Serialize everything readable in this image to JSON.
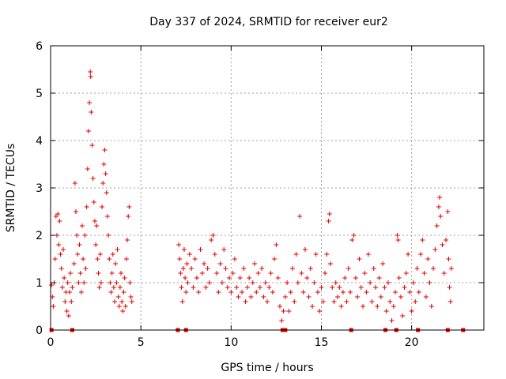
{
  "chart_data": {
    "type": "scatter",
    "title": "Day 337 of 2024, SRMTID for receiver eur2",
    "xlabel": "GPS time / hours",
    "ylabel": "SRMTID / TECUs",
    "xlim": [
      0,
      24
    ],
    "ylim": [
      0,
      6
    ],
    "xticks": [
      0,
      5,
      10,
      15,
      20
    ],
    "xtick_labels": [
      "0",
      "5",
      "10",
      "15",
      "20"
    ],
    "yticks": [
      0,
      1,
      2,
      3,
      4,
      5,
      6
    ],
    "ytick_labels": [
      "0",
      "1",
      "2",
      "3",
      "4",
      "5",
      "6"
    ],
    "grid": true,
    "marker": "+",
    "color": "#e00000",
    "series": [
      {
        "name": "SRMTID",
        "points": [
          [
            0.05,
            0.95
          ],
          [
            0.1,
            0.7
          ],
          [
            0.15,
            0.5
          ],
          [
            0.2,
            1.0
          ],
          [
            0.25,
            1.5
          ],
          [
            0.3,
            2.4
          ],
          [
            0.35,
            2.0
          ],
          [
            0.4,
            2.45
          ],
          [
            0.45,
            1.8
          ],
          [
            0.5,
            2.3
          ],
          [
            0.55,
            1.6
          ],
          [
            0.6,
            1.3
          ],
          [
            0.65,
            0.9
          ],
          [
            0.7,
            1.7
          ],
          [
            0.75,
            1.1
          ],
          [
            0.8,
            0.6
          ],
          [
            0.85,
            0.8
          ],
          [
            0.9,
            0.4
          ],
          [
            0.95,
            1.0
          ],
          [
            1.0,
            0.3
          ],
          [
            1.05,
            0.8
          ],
          [
            1.1,
            1.2
          ],
          [
            1.15,
            0.6
          ],
          [
            1.2,
            0.9
          ],
          [
            1.3,
            1.4
          ],
          [
            1.35,
            3.1
          ],
          [
            1.4,
            2.5
          ],
          [
            1.45,
            2.0
          ],
          [
            1.5,
            1.6
          ],
          [
            1.55,
            1.0
          ],
          [
            1.6,
            1.8
          ],
          [
            1.65,
            1.2
          ],
          [
            1.7,
            0.8
          ],
          [
            1.75,
            2.2
          ],
          [
            1.8,
            1.5
          ],
          [
            1.85,
            1.0
          ],
          [
            1.9,
            2.0
          ],
          [
            1.95,
            1.3
          ],
          [
            2.0,
            2.6
          ],
          [
            2.05,
            3.4
          ],
          [
            2.1,
            4.2
          ],
          [
            2.15,
            4.8
          ],
          [
            2.2,
            5.45
          ],
          [
            2.22,
            5.35
          ],
          [
            2.25,
            4.6
          ],
          [
            2.3,
            3.9
          ],
          [
            2.35,
            3.2
          ],
          [
            2.4,
            2.7
          ],
          [
            2.45,
            2.3
          ],
          [
            2.5,
            1.8
          ],
          [
            2.55,
            2.2
          ],
          [
            2.6,
            1.5
          ],
          [
            2.65,
            1.2
          ],
          [
            2.7,
            0.9
          ],
          [
            2.75,
            1.6
          ],
          [
            2.8,
            1.0
          ],
          [
            2.85,
            2.6
          ],
          [
            2.9,
            3.1
          ],
          [
            2.95,
            3.5
          ],
          [
            3.0,
            3.8
          ],
          [
            3.05,
            3.3
          ],
          [
            3.1,
            2.9
          ],
          [
            3.15,
            2.4
          ],
          [
            3.2,
            2.0
          ],
          [
            3.25,
            1.5
          ],
          [
            3.3,
            1.0
          ],
          [
            3.35,
            0.8
          ],
          [
            3.4,
            1.2
          ],
          [
            3.45,
            1.6
          ],
          [
            3.5,
            0.9
          ],
          [
            3.55,
            0.6
          ],
          [
            3.6,
            1.4
          ],
          [
            3.65,
            1.0
          ],
          [
            3.7,
            1.7
          ],
          [
            3.75,
            0.7
          ],
          [
            3.8,
            0.5
          ],
          [
            3.85,
            0.9
          ],
          [
            3.9,
            1.2
          ],
          [
            3.95,
            0.6
          ],
          [
            4.0,
            0.4
          ],
          [
            4.05,
            0.8
          ],
          [
            4.1,
            1.1
          ],
          [
            4.15,
            0.5
          ],
          [
            4.2,
            1.5
          ],
          [
            4.25,
            1.9
          ],
          [
            4.3,
            2.4
          ],
          [
            4.35,
            2.6
          ],
          [
            4.4,
            1.0
          ],
          [
            4.45,
            0.7
          ],
          [
            4.5,
            0.6
          ],
          [
            7.1,
            1.8
          ],
          [
            7.15,
            1.5
          ],
          [
            7.2,
            1.2
          ],
          [
            7.25,
            0.9
          ],
          [
            7.3,
            0.6
          ],
          [
            7.35,
            1.3
          ],
          [
            7.4,
            1.7
          ],
          [
            7.45,
            1.1
          ],
          [
            7.5,
            0.8
          ],
          [
            7.55,
            1.4
          ],
          [
            7.6,
            1.0
          ],
          [
            7.7,
            1.6
          ],
          [
            7.8,
            1.3
          ],
          [
            7.9,
            0.9
          ],
          [
            8.0,
            1.5
          ],
          [
            8.1,
            1.1
          ],
          [
            8.2,
            0.8
          ],
          [
            8.3,
            1.7
          ],
          [
            8.4,
            1.2
          ],
          [
            8.5,
            1.4
          ],
          [
            8.6,
            0.9
          ],
          [
            8.7,
            1.3
          ],
          [
            8.8,
            1.0
          ],
          [
            8.9,
            1.9
          ],
          [
            9.0,
            2.0
          ],
          [
            9.1,
            1.6
          ],
          [
            9.2,
            1.2
          ],
          [
            9.3,
            0.8
          ],
          [
            9.4,
            1.4
          ],
          [
            9.5,
            1.0
          ],
          [
            9.6,
            1.7
          ],
          [
            9.7,
            1.3
          ],
          [
            9.8,
            0.9
          ],
          [
            9.9,
            1.1
          ],
          [
            10.0,
            0.8
          ],
          [
            10.1,
            1.2
          ],
          [
            10.2,
            1.5
          ],
          [
            10.3,
            0.9
          ],
          [
            10.4,
            0.7
          ],
          [
            10.5,
            1.1
          ],
          [
            10.6,
            0.8
          ],
          [
            10.7,
            1.3
          ],
          [
            10.8,
            0.6
          ],
          [
            10.9,
            0.9
          ],
          [
            11.0,
            1.1
          ],
          [
            11.1,
            0.7
          ],
          [
            11.2,
            1.0
          ],
          [
            11.3,
            1.4
          ],
          [
            11.4,
            0.8
          ],
          [
            11.5,
            1.2
          ],
          [
            11.6,
            0.9
          ],
          [
            11.7,
            1.3
          ],
          [
            11.8,
            0.7
          ],
          [
            11.9,
            1.0
          ],
          [
            12.0,
            0.6
          ],
          [
            12.1,
            0.9
          ],
          [
            12.2,
            1.2
          ],
          [
            12.3,
            0.8
          ],
          [
            12.4,
            1.5
          ],
          [
            12.5,
            1.8
          ],
          [
            12.6,
            1.1
          ],
          [
            12.7,
            0.5
          ],
          [
            12.8,
            0.2
          ],
          [
            12.9,
            0.4
          ],
          [
            13.0,
            0.7
          ],
          [
            13.1,
            1.0
          ],
          [
            13.2,
            0.4
          ],
          [
            13.3,
            0.8
          ],
          [
            13.4,
            1.3
          ],
          [
            13.5,
            0.6
          ],
          [
            13.6,
            1.6
          ],
          [
            13.7,
            1.0
          ],
          [
            13.8,
            2.4
          ],
          [
            13.9,
            1.2
          ],
          [
            14.0,
            0.8
          ],
          [
            14.1,
            1.7
          ],
          [
            14.2,
            1.1
          ],
          [
            14.3,
            0.7
          ],
          [
            14.4,
            1.3
          ],
          [
            14.5,
            0.5
          ],
          [
            14.6,
            1.0
          ],
          [
            14.7,
            1.6
          ],
          [
            14.8,
            0.8
          ],
          [
            14.9,
            0.4
          ],
          [
            15.0,
            0.9
          ],
          [
            15.1,
            0.6
          ],
          [
            15.2,
            1.2
          ],
          [
            15.3,
            1.6
          ],
          [
            15.4,
            2.3
          ],
          [
            15.45,
            2.45
          ],
          [
            15.5,
            1.4
          ],
          [
            15.6,
            0.9
          ],
          [
            15.7,
            0.6
          ],
          [
            15.8,
            1.0
          ],
          [
            15.9,
            0.7
          ],
          [
            16.0,
            0.9
          ],
          [
            16.1,
            0.5
          ],
          [
            16.2,
            0.8
          ],
          [
            16.3,
            1.1
          ],
          [
            16.4,
            0.6
          ],
          [
            16.5,
            1.3
          ],
          [
            16.6,
            0.8
          ],
          [
            16.7,
            1.9
          ],
          [
            16.8,
            2.0
          ],
          [
            16.9,
            1.1
          ],
          [
            17.0,
            0.7
          ],
          [
            17.1,
            1.5
          ],
          [
            17.2,
            0.9
          ],
          [
            17.3,
            0.5
          ],
          [
            17.4,
            1.2
          ],
          [
            17.5,
            0.8
          ],
          [
            17.6,
            1.6
          ],
          [
            17.7,
            1.0
          ],
          [
            17.8,
            0.6
          ],
          [
            17.9,
            1.3
          ],
          [
            18.0,
            0.9
          ],
          [
            18.1,
            0.5
          ],
          [
            18.2,
            1.1
          ],
          [
            18.3,
            0.7
          ],
          [
            18.4,
            1.4
          ],
          [
            18.5,
            0.9
          ],
          [
            18.6,
            0.4
          ],
          [
            18.7,
            1.0
          ],
          [
            18.8,
            0.6
          ],
          [
            18.9,
            0.2
          ],
          [
            19.0,
            0.5
          ],
          [
            19.1,
            0.8
          ],
          [
            19.2,
            2.0
          ],
          [
            19.25,
            1.9
          ],
          [
            19.3,
            1.1
          ],
          [
            19.4,
            0.7
          ],
          [
            19.5,
            0.3
          ],
          [
            19.6,
            0.9
          ],
          [
            19.7,
            1.2
          ],
          [
            19.8,
            1.6
          ],
          [
            19.9,
            0.8
          ],
          [
            20.0,
            0.4
          ],
          [
            20.1,
            1.0
          ],
          [
            20.2,
            0.6
          ],
          [
            20.3,
            1.3
          ],
          [
            20.4,
            0.8
          ],
          [
            20.5,
            1.6
          ],
          [
            20.6,
            1.9
          ],
          [
            20.7,
            1.2
          ],
          [
            20.8,
            0.7
          ],
          [
            20.9,
            1.5
          ],
          [
            21.0,
            1.0
          ],
          [
            21.1,
            0.5
          ],
          [
            21.2,
            1.3
          ],
          [
            21.3,
            1.7
          ],
          [
            21.4,
            2.2
          ],
          [
            21.5,
            2.6
          ],
          [
            21.55,
            2.8
          ],
          [
            21.6,
            2.4
          ],
          [
            21.7,
            1.8
          ],
          [
            21.8,
            1.2
          ],
          [
            21.9,
            1.9
          ],
          [
            22.0,
            2.5
          ],
          [
            22.05,
            1.5
          ],
          [
            22.1,
            0.9
          ],
          [
            22.15,
            0.6
          ],
          [
            22.2,
            1.3
          ]
        ]
      }
    ],
    "gap_markers_x": [
      0.05,
      1.2,
      7.05,
      7.5,
      12.85,
      13.0,
      16.65,
      18.55,
      19.15,
      20.35,
      22.0,
      22.85
    ]
  }
}
